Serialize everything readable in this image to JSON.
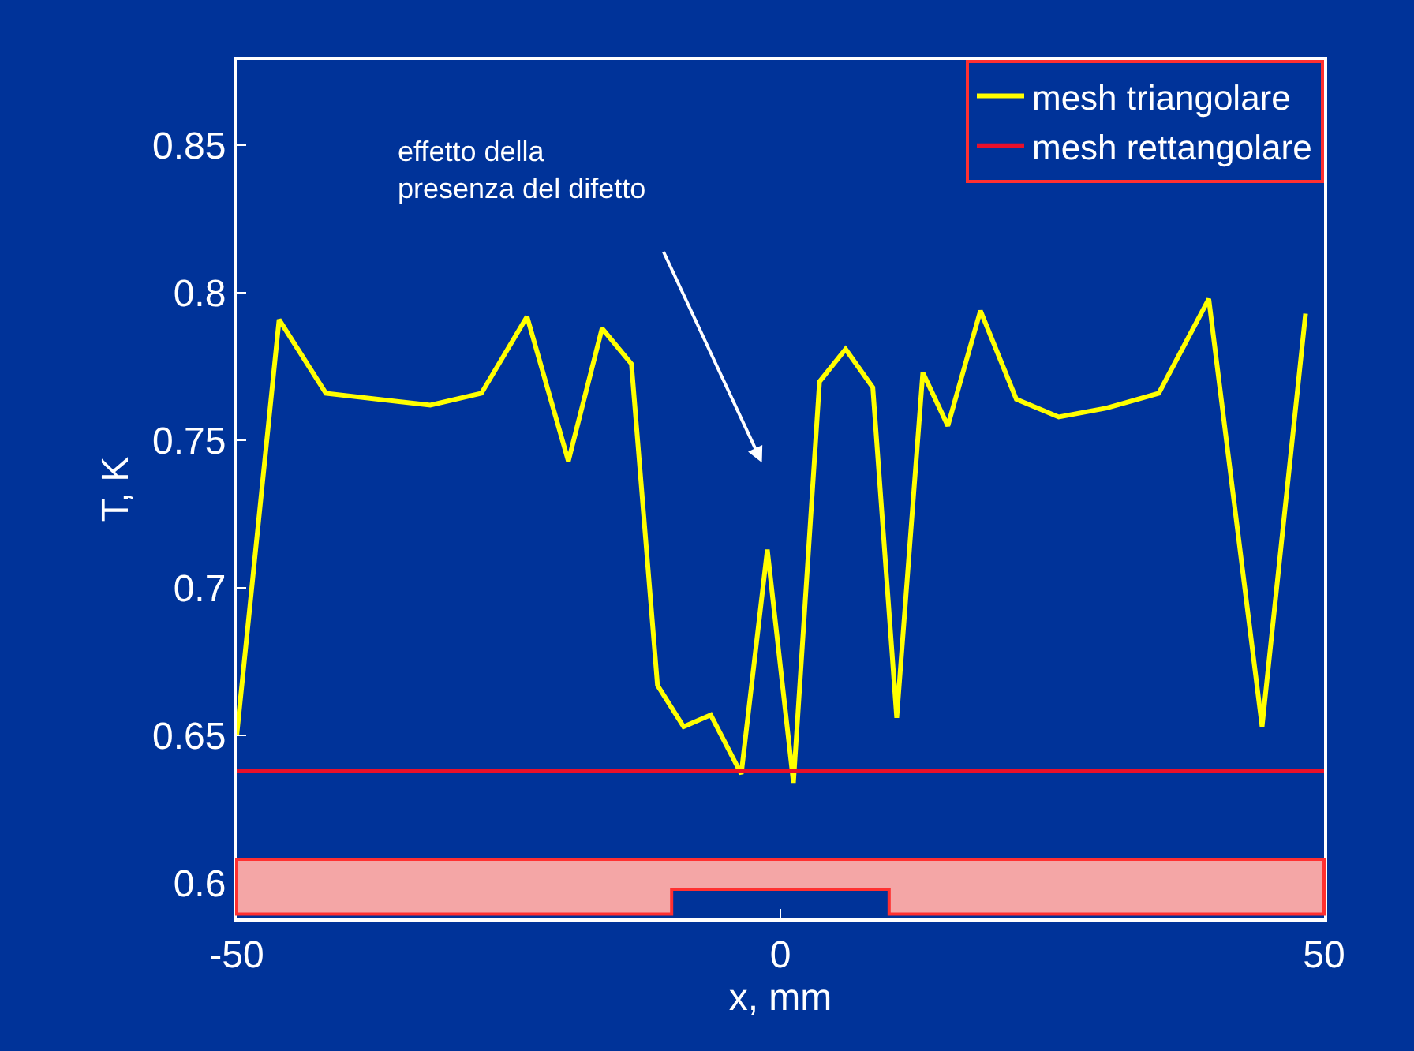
{
  "chart_data": {
    "type": "line",
    "xlabel": "x, mm",
    "ylabel": "T, K",
    "x": [
      -50,
      -46.1,
      -41.8,
      -32.2,
      -27.5,
      -23.3,
      -19.5,
      -16.4,
      -13.7,
      -11.3,
      -8.9,
      -6.4,
      -3.6,
      -1.2,
      1.2,
      3.6,
      6.0,
      8.5,
      10.7,
      13.1,
      15.4,
      18.4,
      21.7,
      25.6,
      30.0,
      34.8,
      39.4,
      44.3,
      48.3
    ],
    "series": [
      {
        "name": "mesh triangolare",
        "color": "#ffff00",
        "values": [
          0.65,
          0.791,
          0.766,
          0.762,
          0.766,
          0.792,
          0.743,
          0.788,
          0.776,
          0.667,
          0.653,
          0.657,
          0.637,
          0.713,
          0.634,
          0.77,
          0.781,
          0.768,
          0.656,
          0.773,
          0.755,
          0.794,
          0.764,
          0.758,
          0.761,
          0.766,
          0.798,
          0.653,
          0.793
        ]
      },
      {
        "name": "mesh rettangolare",
        "color": "#e8102a",
        "x": [
          -50,
          50
        ],
        "values": [
          0.638,
          0.638
        ]
      }
    ],
    "annotations": [
      "effetto della\npresenza del difetto"
    ],
    "xlim": [
      -50,
      50
    ],
    "ylim": [
      0.588,
      0.879
    ],
    "xticks": [
      -50,
      0,
      50
    ],
    "yticks": [
      0.6,
      0.65,
      0.7,
      0.75,
      0.8,
      0.85
    ],
    "grid": false,
    "legend": "top right",
    "marker": "none",
    "line_style": "solid"
  }
}
